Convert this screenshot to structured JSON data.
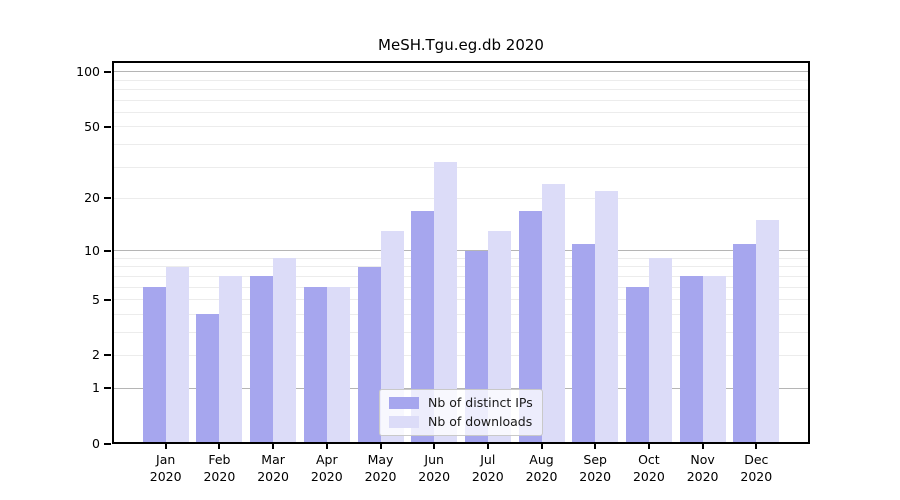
{
  "title": "MeSH.Tgu.eg.db 2020",
  "colors": {
    "distinct_ips": "#a6a6ee",
    "downloads": "#dcdcf8",
    "major_grid": "#b5b5b5",
    "minor_grid": "#ececec",
    "axis": "#000000"
  },
  "legend": {
    "items": [
      {
        "label": "Nb of distinct IPs",
        "color": "#a6a6ee"
      },
      {
        "label": "Nb of downloads",
        "color": "#dcdcf8"
      }
    ]
  },
  "y_axis": {
    "tick_labels": [
      "100",
      "50",
      "20",
      "10",
      "5",
      "2",
      "1",
      "0"
    ],
    "tick_values": [
      100,
      50,
      20,
      10,
      5,
      2,
      1,
      0
    ],
    "minor_grid_values": [
      2,
      3,
      4,
      5,
      6,
      7,
      8,
      9,
      20,
      30,
      40,
      50,
      60,
      70,
      80,
      90
    ],
    "major_grid_values": [
      1,
      10,
      100
    ]
  },
  "x_axis": {
    "months": [
      "Jan",
      "Feb",
      "Mar",
      "Apr",
      "May",
      "Jun",
      "Jul",
      "Aug",
      "Sep",
      "Oct",
      "Nov",
      "Dec"
    ],
    "year": "2020"
  },
  "chart_data": {
    "type": "bar",
    "title": "MeSH.Tgu.eg.db 2020",
    "categories": [
      "Jan 2020",
      "Feb 2020",
      "Mar 2020",
      "Apr 2020",
      "May 2020",
      "Jun 2020",
      "Jul 2020",
      "Aug 2020",
      "Sep 2020",
      "Oct 2020",
      "Nov 2020",
      "Dec 2020"
    ],
    "series": [
      {
        "name": "Nb of distinct IPs",
        "color": "#a6a6ee",
        "values": [
          6,
          4,
          7,
          6,
          8,
          17,
          10,
          17,
          11,
          6,
          7,
          11
        ]
      },
      {
        "name": "Nb of downloads",
        "color": "#dcdcf8",
        "values": [
          8,
          7,
          9,
          6,
          13,
          32,
          13,
          24,
          22,
          9,
          7,
          15
        ]
      }
    ],
    "y_scale": "log10(1+v)",
    "y_ticks": [
      0,
      1,
      2,
      5,
      10,
      20,
      50,
      100
    ],
    "ylim": [
      0,
      115
    ],
    "xlabel": "",
    "ylabel": "",
    "grid": "horizontal; faint minor lines, darker lines at 1/10/100",
    "legend_position": "lower center inside plot area"
  }
}
